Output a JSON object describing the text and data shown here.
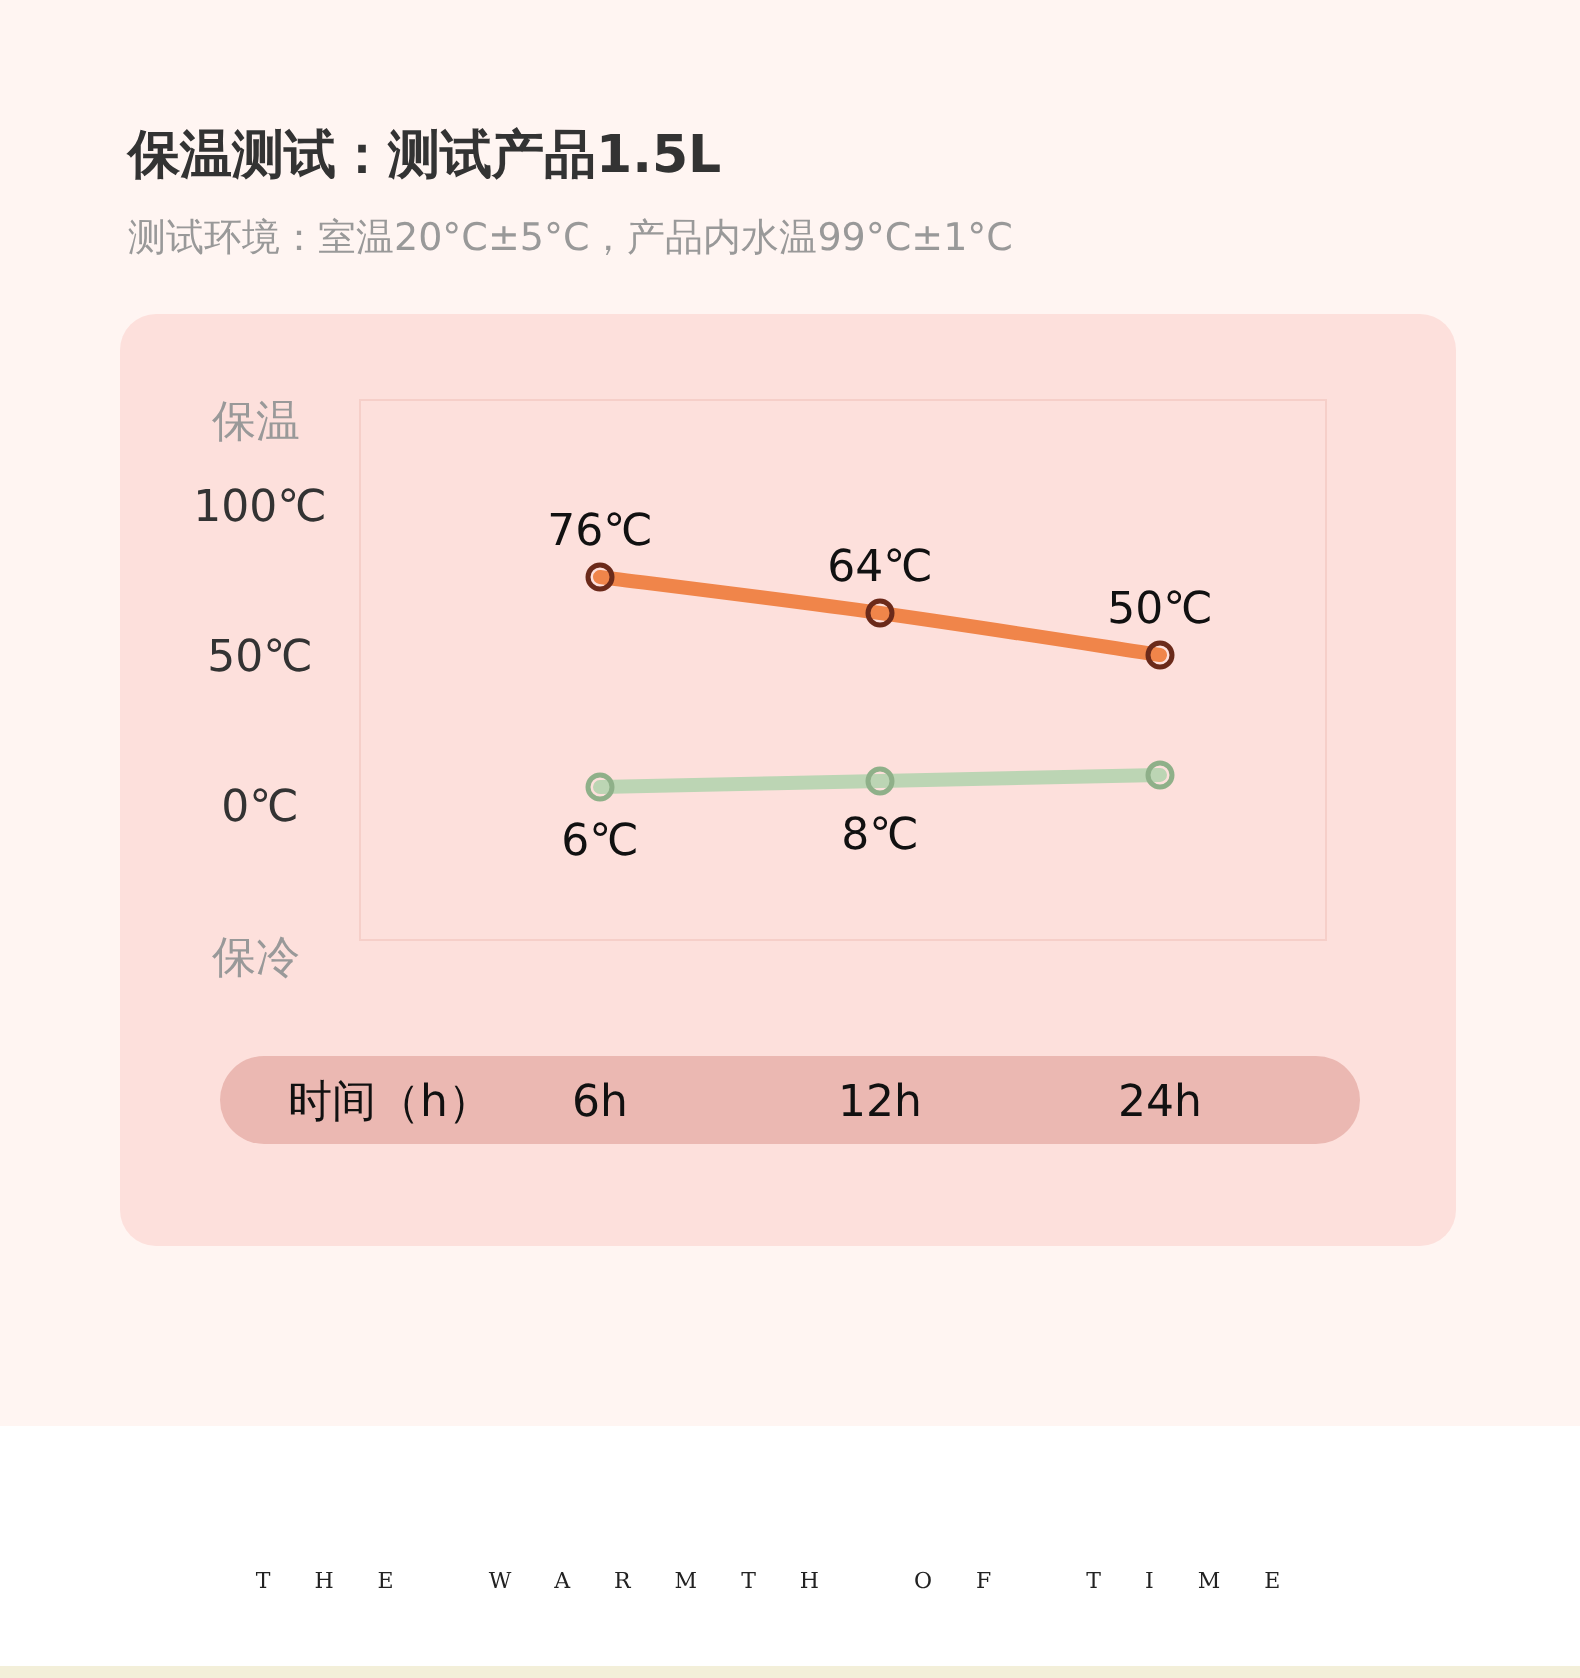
{
  "chart_data": {
    "type": "line",
    "title": "保温测试：测试产品1.5L",
    "subtitle": "测试环境：室温20°C±5°C，产品内水温99°C±1°C",
    "xlabel": "时间（h）",
    "categories": [
      "6h",
      "12h",
      "24h"
    ],
    "series": [
      {
        "color": "#f0854a",
        "values": [
          76,
          64,
          50
        ],
        "value_labels": [
          "76℃",
          "64℃",
          "50℃"
        ]
      },
      {
        "color": "#bcd5b4",
        "values": [
          6,
          8,
          10
        ],
        "value_labels": [
          "6℃",
          "8℃",
          null
        ]
      }
    ],
    "ylim": [
      -45,
      135
    ],
    "yticks": [
      {
        "value": 100,
        "label": "100℃"
      },
      {
        "value": 50,
        "label": "50℃"
      },
      {
        "value": 0,
        "label": "0℃"
      }
    ],
    "marker": "circle",
    "annotations": [
      "保温",
      "保冷",
      "THE WARMTH OF TIME"
    ]
  }
}
